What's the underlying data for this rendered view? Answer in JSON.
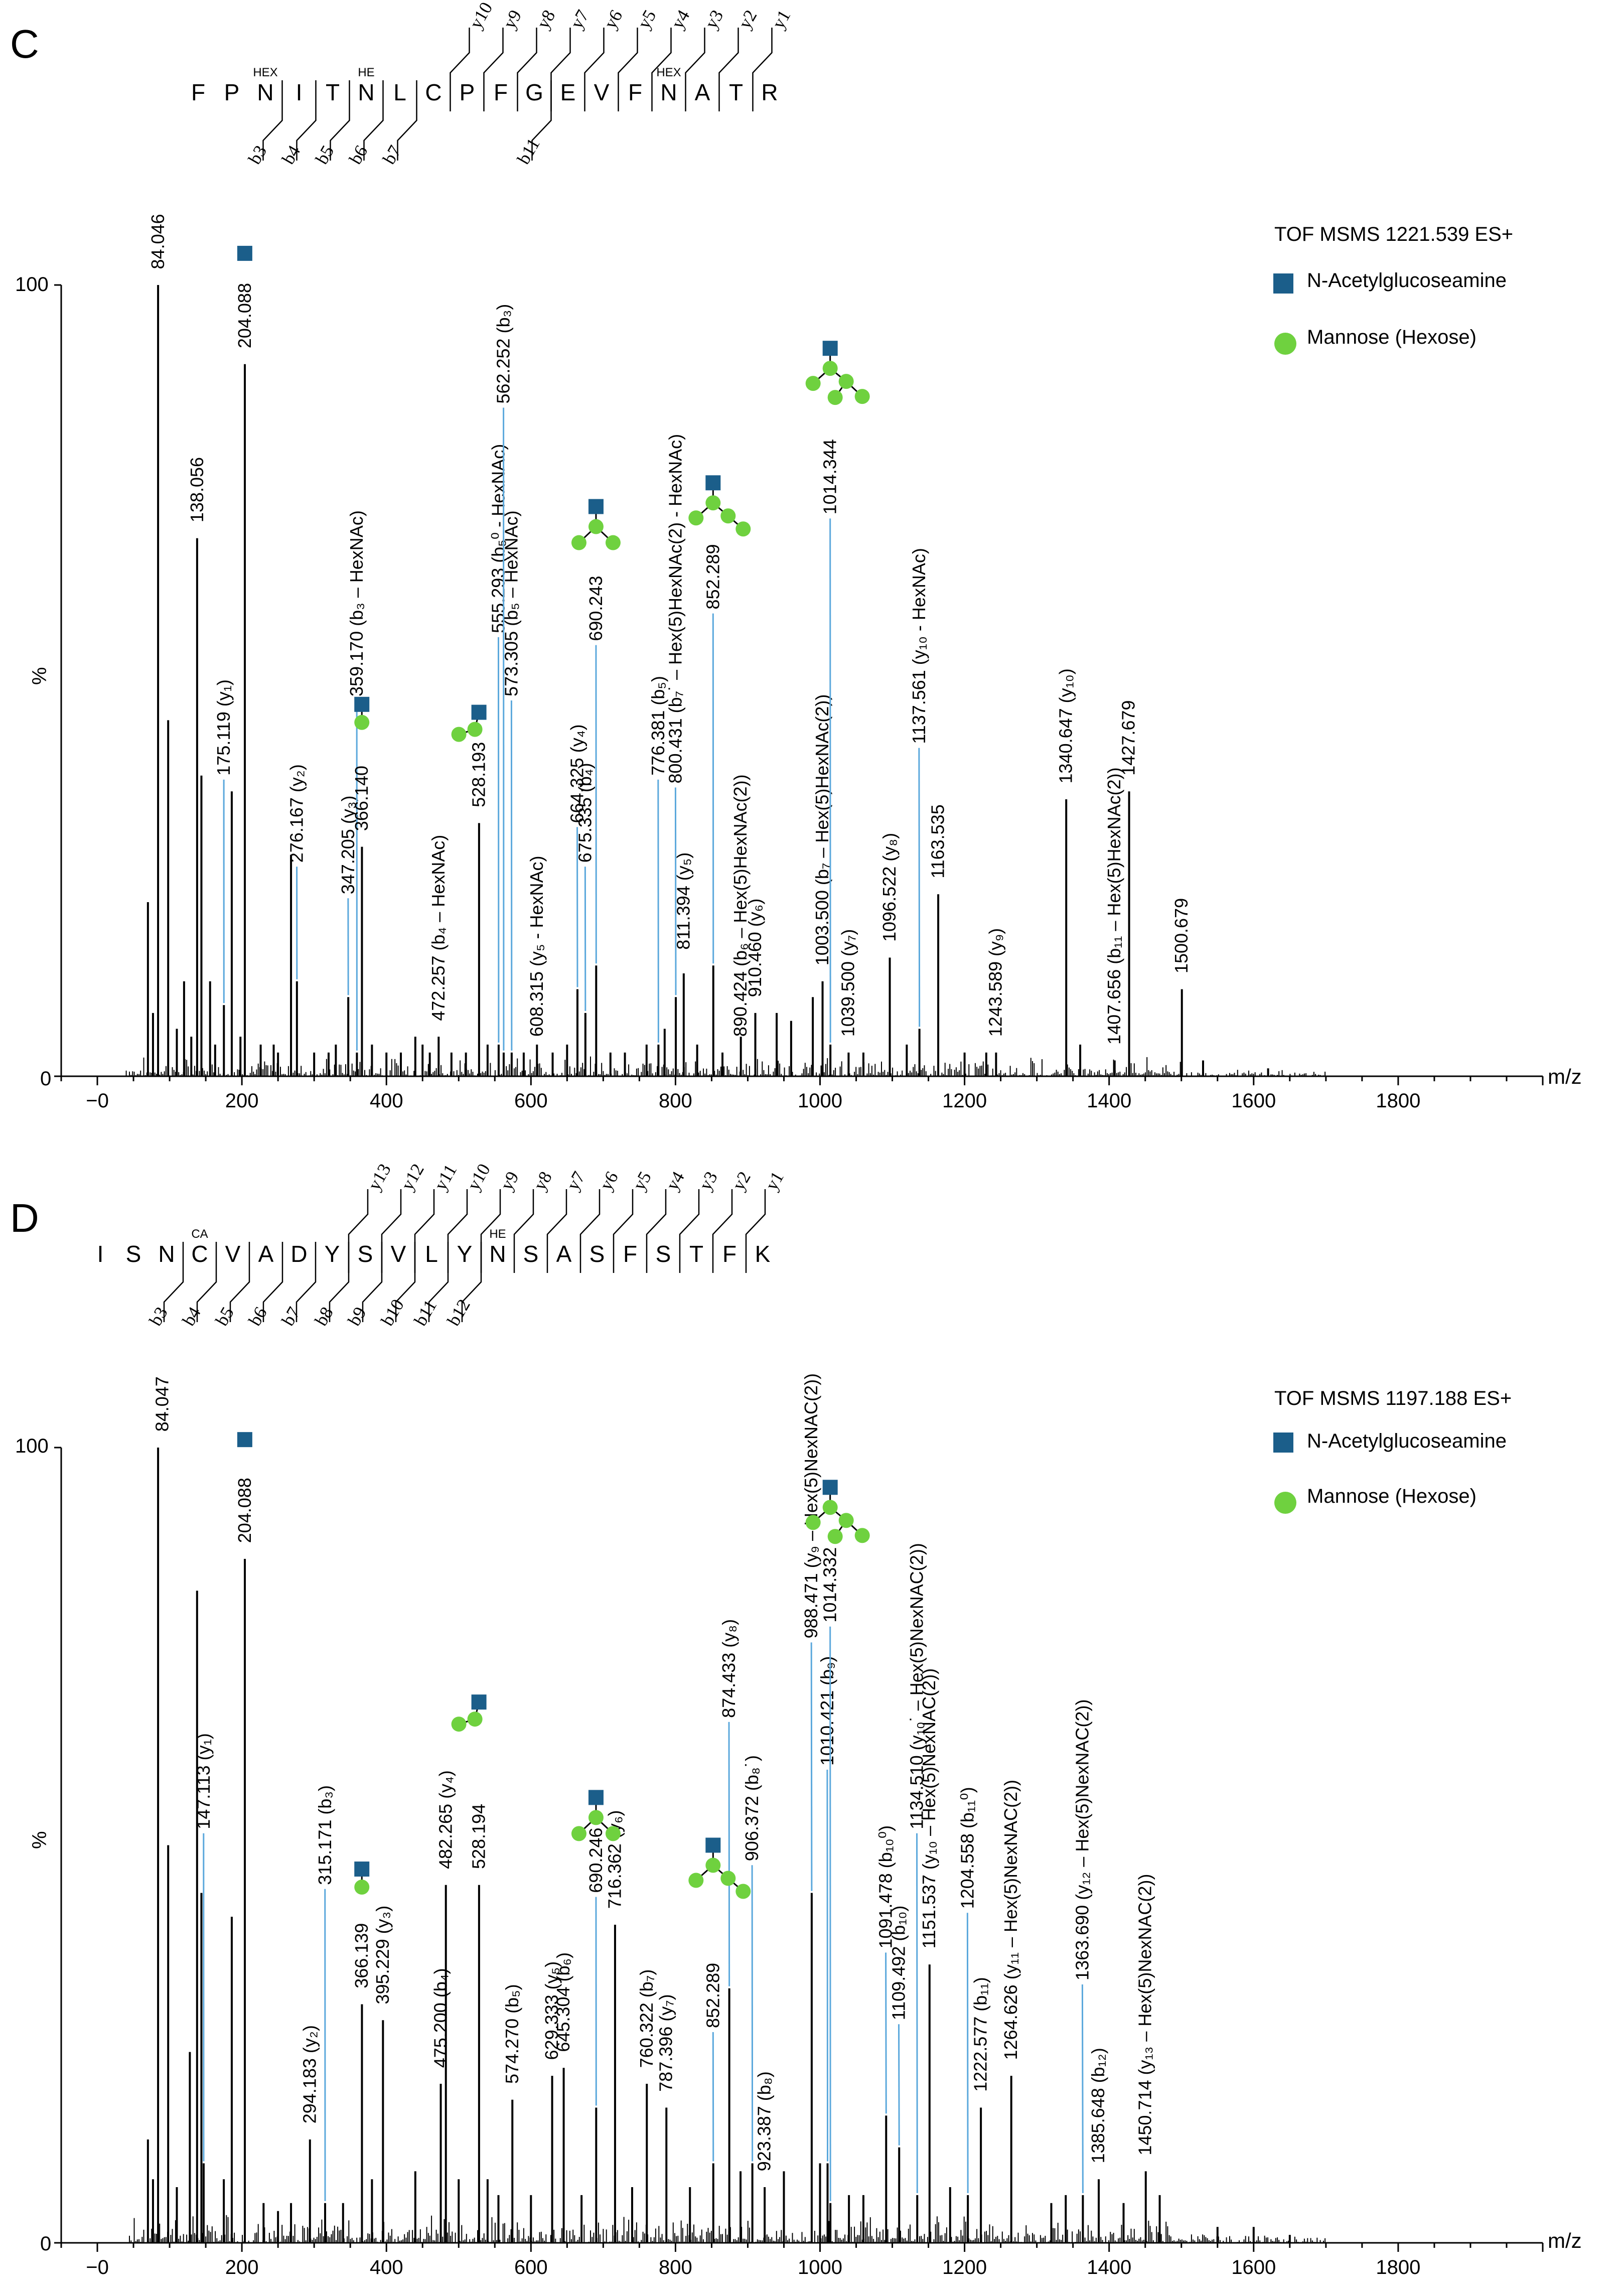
{
  "panels": [
    {
      "letter": "C",
      "peptide": [
        "F",
        "P",
        "N",
        "I",
        "T",
        "N",
        "L",
        "C",
        "P",
        "F",
        "G",
        "E",
        "V",
        "F",
        "N",
        "A",
        "T",
        "R"
      ],
      "mods": [
        {
          "after": 2,
          "text": "HEX"
        },
        {
          "after": 5,
          "text": "HE"
        },
        {
          "after": 14,
          "text": "HEX"
        }
      ],
      "b_ions": [
        "b3",
        "b4",
        "b5",
        "b6",
        "b7",
        "b11"
      ],
      "b_after": [
        2,
        3,
        4,
        5,
        6,
        10
      ],
      "y_ions": [
        "y10",
        "y9",
        "y8",
        "y7",
        "y6",
        "y5",
        "y4",
        "y3",
        "y2",
        "y1"
      ],
      "y_after": [
        7,
        8,
        9,
        10,
        11,
        12,
        13,
        14,
        15,
        16
      ],
      "header": "TOF MSMS  1221.539 ES+",
      "legend": [
        "N-Acetylglucoseamine",
        "Mannose (Hexose)"
      ],
      "y_top_label": "100",
      "y_zero_label": "0",
      "y_axis_label": "%",
      "x_axis_label": "m/z"
    },
    {
      "letter": "D",
      "peptide": [
        "I",
        "S",
        "N",
        "C",
        "V",
        "A",
        "D",
        "Y",
        "S",
        "V",
        "L",
        "Y",
        "N",
        "S",
        "A",
        "S",
        "F",
        "S",
        "T",
        "F",
        "K"
      ],
      "mods": [
        {
          "after": 3,
          "text": "CA"
        },
        {
          "after": 12,
          "text": "HE"
        }
      ],
      "b_ions": [
        "b3",
        "b4",
        "b5",
        "b6",
        "b7",
        "b8",
        "b9",
        "b10",
        "b11",
        "b12"
      ],
      "b_after": [
        2,
        3,
        4,
        5,
        6,
        7,
        8,
        9,
        10,
        11
      ],
      "y_ions": [
        "y13",
        "y12",
        "y11",
        "y10",
        "y9",
        "y8",
        "y7",
        "y6",
        "y5",
        "y4",
        "y3",
        "y2",
        "y1"
      ],
      "y_after": [
        7,
        8,
        9,
        10,
        11,
        12,
        13,
        14,
        15,
        16,
        17,
        18,
        19
      ],
      "header": "TOF MSMS  1197.188 ES+",
      "legend": [
        "N-Acetylglucoseamine",
        "Mannose (Hexose)"
      ],
      "y_top_label": "100",
      "y_zero_label": "0",
      "y_axis_label": "%",
      "x_axis_label": "m/z"
    }
  ],
  "colors": {
    "hexnac": "#1b5e8a",
    "hexose": "#6fd13f",
    "leader": "#5ba8dc",
    "peak": "#000000"
  },
  "chart_data": [
    {
      "type": "bar",
      "title": "TOF MSMS  1221.539 ES+",
      "xlabel": "m/z",
      "ylabel": "%",
      "xlim": [
        -50,
        2000
      ],
      "ylim": [
        0,
        100
      ],
      "xticks": [
        0,
        200,
        400,
        600,
        800,
        1000,
        1200,
        1400,
        1600,
        1800
      ],
      "xtick_labels": [
        "−0",
        "200",
        "400",
        "600",
        "800",
        "1000",
        "1200",
        "1400",
        "1600",
        "1800"
      ],
      "peaks": [
        {
          "mz": 70,
          "y": 22
        },
        {
          "mz": 77,
          "y": 8
        },
        {
          "mz": 84.046,
          "y": 100,
          "label": "84.046",
          "lx": 84,
          "ly": 102
        },
        {
          "mz": 98,
          "y": 45
        },
        {
          "mz": 110,
          "y": 6
        },
        {
          "mz": 120,
          "y": 12
        },
        {
          "mz": 130,
          "y": 5
        },
        {
          "mz": 138.056,
          "y": 68,
          "label": "138.056",
          "lx": 138,
          "ly": 70
        },
        {
          "mz": 144,
          "y": 38
        },
        {
          "mz": 156,
          "y": 12
        },
        {
          "mz": 163,
          "y": 4
        },
        {
          "mz": 175.119,
          "y": 9,
          "label": "175.119 (y₁)",
          "lx": 175,
          "ly": 38
        },
        {
          "mz": 186,
          "y": 36
        },
        {
          "mz": 198,
          "y": 5
        },
        {
          "mz": 204.088,
          "y": 90,
          "label": "204.088",
          "lx": 204,
          "ly": 92
        },
        {
          "mz": 226,
          "y": 4
        },
        {
          "mz": 244,
          "y": 4
        },
        {
          "mz": 250,
          "y": 3
        },
        {
          "mz": 268,
          "y": 28
        },
        {
          "mz": 276.167,
          "y": 12,
          "label": "276.167 (y₂)",
          "lx": 276,
          "ly": 27
        },
        {
          "mz": 300,
          "y": 3
        },
        {
          "mz": 320,
          "y": 3
        },
        {
          "mz": 330,
          "y": 4
        },
        {
          "mz": 347.205,
          "y": 10,
          "label": "347.205 (y₃)",
          "lx": 347,
          "ly": 23
        },
        {
          "mz": 359.17,
          "y": 3,
          "label": "359.170 (b₃ – HexNAc)",
          "lx": 359,
          "ly": 48
        },
        {
          "mz": 366.14,
          "y": 29,
          "label": "366.140",
          "lx": 366,
          "ly": 31
        },
        {
          "mz": 380,
          "y": 4
        },
        {
          "mz": 400,
          "y": 3
        },
        {
          "mz": 420,
          "y": 3
        },
        {
          "mz": 440,
          "y": 5
        },
        {
          "mz": 450,
          "y": 4
        },
        {
          "mz": 460,
          "y": 3
        },
        {
          "mz": 472.257,
          "y": 5,
          "label": "472.257 (b₄ – HexNAc)",
          "lx": 472,
          "ly": 7
        },
        {
          "mz": 490,
          "y": 3
        },
        {
          "mz": 510,
          "y": 3
        },
        {
          "mz": 528.193,
          "y": 32,
          "label": "528.193",
          "lx": 528,
          "ly": 34
        },
        {
          "mz": 540,
          "y": 4
        },
        {
          "mz": 555.293,
          "y": 4,
          "label": "555.293 (b₅⁰ - HexNAc)",
          "lx": 555,
          "ly": 56
        },
        {
          "mz": 562.252,
          "y": 3,
          "label": "562.252 (b₃)",
          "lx": 562,
          "ly": 85
        },
        {
          "mz": 573.305,
          "y": 3,
          "label": "573.305 (b₅ – HexNAc)",
          "lx": 573,
          "ly": 48
        },
        {
          "mz": 590,
          "y": 3
        },
        {
          "mz": 608.315,
          "y": 4,
          "label": "608.315 (y₅ - HexNAc)",
          "lx": 608,
          "ly": 5
        },
        {
          "mz": 630,
          "y": 3
        },
        {
          "mz": 650,
          "y": 4
        },
        {
          "mz": 664.325,
          "y": 11,
          "label": "664.325 (y₄)",
          "lx": 664,
          "ly": 32
        },
        {
          "mz": 675.335,
          "y": 8,
          "label": "675.335 (b₄)",
          "lx": 675,
          "ly": 27
        },
        {
          "mz": 690.243,
          "y": 14,
          "label": "690.243",
          "lx": 690,
          "ly": 55
        },
        {
          "mz": 710,
          "y": 3
        },
        {
          "mz": 730,
          "y": 3
        },
        {
          "mz": 760,
          "y": 4
        },
        {
          "mz": 776.381,
          "y": 4,
          "label": "776.381 (b₅)",
          "lx": 776,
          "ly": 38
        },
        {
          "mz": 785,
          "y": 6
        },
        {
          "mz": 800.431,
          "y": 10,
          "label": "800.431 (b₇˙ – Hex(5)HexNAc(2) - HexNAc)",
          "lx": 800,
          "ly": 37
        },
        {
          "mz": 811.394,
          "y": 13,
          "label": "811.394 (y₅)",
          "lx": 811,
          "ly": 16
        },
        {
          "mz": 830,
          "y": 4
        },
        {
          "mz": 852.289,
          "y": 14,
          "label": "852.289",
          "lx": 852,
          "ly": 59
        },
        {
          "mz": 865,
          "y": 3
        },
        {
          "mz": 890.424,
          "y": 5,
          "label": "890.424 (b₆ – Hex(5)HexNAc(2))",
          "lx": 890,
          "ly": 5
        },
        {
          "mz": 910.46,
          "y": 8,
          "label": "910.460 (y₆)",
          "lx": 910,
          "ly": 10
        },
        {
          "mz": 940,
          "y": 8
        },
        {
          "mz": 960,
          "y": 7
        },
        {
          "mz": 990,
          "y": 10
        },
        {
          "mz": 1003.5,
          "y": 12,
          "label": "1003.500 (b₇ – Hex(5)HexNAc(2))",
          "lx": 1003,
          "ly": 14
        },
        {
          "mz": 1014.344,
          "y": 4,
          "label": "1014.344",
          "lx": 1014,
          "ly": 71
        },
        {
          "mz": 1039.5,
          "y": 3,
          "label": "1039.500 (y₇)",
          "lx": 1039,
          "ly": 5
        },
        {
          "mz": 1060,
          "y": 3
        },
        {
          "mz": 1096.522,
          "y": 15,
          "label": "1096.522 (y₈)",
          "lx": 1096,
          "ly": 17
        },
        {
          "mz": 1120,
          "y": 4
        },
        {
          "mz": 1137.561,
          "y": 6,
          "label": "1137.561 (y₁₀ - HexNAc)",
          "lx": 1137,
          "ly": 42
        },
        {
          "mz": 1163.535,
          "y": 23,
          "label": "1163.535",
          "lx": 1163,
          "ly": 25
        },
        {
          "mz": 1200,
          "y": 3
        },
        {
          "mz": 1230,
          "y": 3
        },
        {
          "mz": 1243.589,
          "y": 3,
          "label": "1243.589 (y₉)",
          "lx": 1243,
          "ly": 5
        },
        {
          "mz": 1340.647,
          "y": 35,
          "label": "1340.647 (y₁₀)",
          "lx": 1340,
          "ly": 37
        },
        {
          "mz": 1360,
          "y": 4
        },
        {
          "mz": 1407.656,
          "y": 2,
          "label": "1407.656 (b₁₁ – Hex(5)HexNAc(2))",
          "lx": 1407,
          "ly": 4
        },
        {
          "mz": 1427.679,
          "y": 36,
          "label": "1427.679",
          "lx": 1427,
          "ly": 38
        },
        {
          "mz": 1500.679,
          "y": 11,
          "label": "1500.679",
          "lx": 1500,
          "ly": 13
        },
        {
          "mz": 1530,
          "y": 2
        },
        {
          "mz": 1620,
          "y": 1
        }
      ],
      "glycans": [
        {
          "x": 204,
          "y": 104,
          "kind": "hexnac"
        },
        {
          "x": 366,
          "y": 47,
          "kind": "hexnac-hex"
        },
        {
          "x": 528,
          "y": 46,
          "kind": "hexnac-2hex"
        },
        {
          "x": 690,
          "y": 72,
          "kind": "hexnac-3hex"
        },
        {
          "x": 852,
          "y": 75,
          "kind": "hexnac-4hex"
        },
        {
          "x": 1014,
          "y": 92,
          "kind": "hexnac-5hex"
        }
      ]
    },
    {
      "type": "bar",
      "title": "TOF MSMS  1197.188 ES+",
      "xlabel": "m/z",
      "ylabel": "%",
      "xlim": [
        -50,
        2000
      ],
      "ylim": [
        0,
        100
      ],
      "xticks": [
        0,
        200,
        400,
        600,
        800,
        1000,
        1200,
        1400,
        1600,
        1800
      ],
      "xtick_labels": [
        "−0",
        "200",
        "400",
        "600",
        "800",
        "1000",
        "1200",
        "1400",
        "1600",
        "1800"
      ],
      "peaks": [
        {
          "mz": 70,
          "y": 13
        },
        {
          "mz": 77,
          "y": 8
        },
        {
          "mz": 84.047,
          "y": 100,
          "label": "84.047",
          "lx": 90,
          "ly": 102
        },
        {
          "mz": 98,
          "y": 50
        },
        {
          "mz": 110,
          "y": 7
        },
        {
          "mz": 128,
          "y": 24
        },
        {
          "mz": 138,
          "y": 82
        },
        {
          "mz": 144,
          "y": 44
        },
        {
          "mz": 147.113,
          "y": 10,
          "label": "147.113 (y₁)",
          "lx": 147,
          "ly": 52
        },
        {
          "mz": 175,
          "y": 8
        },
        {
          "mz": 186,
          "y": 41
        },
        {
          "mz": 204.088,
          "y": 86,
          "label": "204.088",
          "lx": 204,
          "ly": 88
        },
        {
          "mz": 230,
          "y": 5
        },
        {
          "mz": 250,
          "y": 4
        },
        {
          "mz": 268,
          "y": 5
        },
        {
          "mz": 294.183,
          "y": 13,
          "label": "294.183 (y₂)",
          "lx": 294,
          "ly": 15
        },
        {
          "mz": 315.171,
          "y": 5,
          "label": "315.171 (b₃)",
          "lx": 315,
          "ly": 45
        },
        {
          "mz": 340,
          "y": 5
        },
        {
          "mz": 366.139,
          "y": 30,
          "label": "366.139",
          "lx": 366,
          "ly": 32
        },
        {
          "mz": 380,
          "y": 8
        },
        {
          "mz": 395.229,
          "y": 28,
          "label": "395.229 (y₃)",
          "lx": 395,
          "ly": 30
        },
        {
          "mz": 440,
          "y": 9
        },
        {
          "mz": 475.2,
          "y": 20,
          "label": "475.200 (b₄)",
          "lx": 475,
          "ly": 22
        },
        {
          "mz": 482.265,
          "y": 45,
          "label": "482.265 (y₄)",
          "lx": 482,
          "ly": 47
        },
        {
          "mz": 500,
          "y": 8
        },
        {
          "mz": 528.194,
          "y": 45,
          "label": "528.194",
          "lx": 528,
          "ly": 47
        },
        {
          "mz": 540,
          "y": 8
        },
        {
          "mz": 555,
          "y": 6
        },
        {
          "mz": 574.27,
          "y": 18,
          "label": "574.270 (b₅)",
          "lx": 574,
          "ly": 20
        },
        {
          "mz": 600,
          "y": 6
        },
        {
          "mz": 629.333,
          "y": 21,
          "label": "629.333 (y₅)",
          "lx": 629,
          "ly": 23
        },
        {
          "mz": 645.304,
          "y": 22,
          "label": "645.304 (b₆)",
          "lx": 645,
          "ly": 24
        },
        {
          "mz": 670,
          "y": 6
        },
        {
          "mz": 690.246,
          "y": 17,
          "label": "690.246",
          "lx": 690,
          "ly": 44
        },
        {
          "mz": 716.362,
          "y": 40,
          "label": "716.362 (y₆)",
          "lx": 716,
          "ly": 42
        },
        {
          "mz": 740,
          "y": 7
        },
        {
          "mz": 760.322,
          "y": 20,
          "label": "760.322 (b₇)",
          "lx": 760,
          "ly": 22
        },
        {
          "mz": 787.396,
          "y": 17,
          "label": "787.396 (y₇)",
          "lx": 787,
          "ly": 19
        },
        {
          "mz": 820,
          "y": 7
        },
        {
          "mz": 852.289,
          "y": 10,
          "label": "852.289",
          "lx": 852,
          "ly": 27
        },
        {
          "mz": 874.433,
          "y": 32,
          "label": "874.433 (y₈)",
          "lx": 874,
          "ly": 66
        },
        {
          "mz": 890,
          "y": 9
        },
        {
          "mz": 906.372,
          "y": 10,
          "label": "906.372 (b₈˙)",
          "lx": 906,
          "ly": 48
        },
        {
          "mz": 923.387,
          "y": 7,
          "label": "923.387 (b₈)",
          "lx": 923,
          "ly": 9
        },
        {
          "mz": 950,
          "y": 9
        },
        {
          "mz": 988.471,
          "y": 44,
          "label": "988.471 (y₉ – Hex(5)NexNAC(2))",
          "lx": 988,
          "ly": 76
        },
        {
          "mz": 1000,
          "y": 10
        },
        {
          "mz": 1010.421,
          "y": 10,
          "label": "1010.421 (b₉)",
          "lx": 1010,
          "ly": 60
        },
        {
          "mz": 1014.332,
          "y": 5,
          "label": "1014.332",
          "lx": 1014,
          "ly": 78
        },
        {
          "mz": 1040,
          "y": 6
        },
        {
          "mz": 1060,
          "y": 6
        },
        {
          "mz": 1091.478,
          "y": 16,
          "label": "1091.478 (b₁₀⁰)",
          "lx": 1091,
          "ly": 37
        },
        {
          "mz": 1109.492,
          "y": 12,
          "label": "1109.492 (b₁₀)",
          "lx": 1109,
          "ly": 28
        },
        {
          "mz": 1134.51,
          "y": 6,
          "label": "1134.510 (y₁₀˙ – Hex(5)NexNAC(2))",
          "lx": 1134,
          "ly": 52
        },
        {
          "mz": 1151.537,
          "y": 35,
          "label": "1151.537 (y₁₀ – Hex(5)NexNAC(2))",
          "lx": 1151,
          "ly": 37
        },
        {
          "mz": 1180,
          "y": 7
        },
        {
          "mz": 1204.558,
          "y": 6,
          "label": "1204.558 (b₁₁⁰)",
          "lx": 1204,
          "ly": 42
        },
        {
          "mz": 1222.577,
          "y": 17,
          "label": "1222.577 (b₁₁)",
          "lx": 1222,
          "ly": 19
        },
        {
          "mz": 1264.626,
          "y": 21,
          "label": "1264.626 (y₁₁ – Hex(5)NexNAC(2))",
          "lx": 1264,
          "ly": 23
        },
        {
          "mz": 1320,
          "y": 5
        },
        {
          "mz": 1340,
          "y": 6
        },
        {
          "mz": 1363.69,
          "y": 6,
          "label": "1363.690 (y₁₂ – Hex(5)NexNAC(2))",
          "lx": 1363,
          "ly": 33
        },
        {
          "mz": 1385.648,
          "y": 8,
          "label": "1385.648 (b₁₂)",
          "lx": 1385,
          "ly": 10
        },
        {
          "mz": 1420,
          "y": 5
        },
        {
          "mz": 1450.714,
          "y": 9,
          "label": "1450.714 (y₁₃ – Hex(5)NexNAC(2))",
          "lx": 1450,
          "ly": 11
        },
        {
          "mz": 1470,
          "y": 6
        },
        {
          "mz": 1550,
          "y": 2
        },
        {
          "mz": 1600,
          "y": 2
        },
        {
          "mz": 1650,
          "y": 1
        }
      ],
      "glycans": [
        {
          "x": 204,
          "y": 101,
          "kind": "hexnac"
        },
        {
          "x": 366,
          "y": 47,
          "kind": "hexnac-hex"
        },
        {
          "x": 528,
          "y": 68,
          "kind": "hexnac-2hex"
        },
        {
          "x": 690,
          "y": 56,
          "kind": "hexnac-3hex"
        },
        {
          "x": 852,
          "y": 50,
          "kind": "hexnac-4hex"
        },
        {
          "x": 1014,
          "y": 95,
          "kind": "hexnac-5hex"
        }
      ]
    }
  ]
}
